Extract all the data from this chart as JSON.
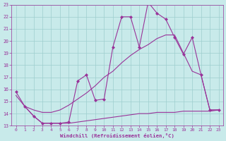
{
  "background_color": "#c8eaea",
  "grid_color": "#9ecece",
  "line_color": "#993399",
  "marker_color": "#993399",
  "xlabel": "Windchill (Refroidissement éolien,°C)",
  "xlabel_color": "#993399",
  "tick_color": "#993399",
  "xlim": [
    -0.5,
    23.5
  ],
  "ylim": [
    13,
    23
  ],
  "yticks": [
    13,
    14,
    15,
    16,
    17,
    18,
    19,
    20,
    21,
    22,
    23
  ],
  "xticks": [
    0,
    1,
    2,
    3,
    4,
    5,
    6,
    7,
    8,
    9,
    10,
    11,
    12,
    13,
    14,
    15,
    16,
    17,
    18,
    19,
    20,
    21,
    22,
    23
  ],
  "line1_x": [
    0,
    1,
    2,
    3,
    4,
    5,
    6,
    7,
    8,
    9,
    10,
    11,
    12,
    13,
    14,
    15,
    16,
    17,
    18,
    19,
    20,
    21,
    22,
    23
  ],
  "line1_y": [
    15.8,
    14.6,
    13.8,
    13.2,
    13.2,
    13.2,
    13.3,
    16.7,
    17.2,
    15.1,
    15.2,
    19.5,
    22.0,
    22.0,
    19.5,
    23.2,
    22.3,
    21.8,
    20.3,
    18.9,
    20.3,
    17.2,
    14.3,
    14.3
  ],
  "line2_x": [
    0,
    1,
    2,
    3,
    4,
    5,
    6,
    7,
    8,
    9,
    10,
    11,
    12,
    13,
    14,
    15,
    16,
    17,
    18,
    19,
    20,
    21,
    22,
    23
  ],
  "line2_y": [
    15.5,
    14.6,
    14.3,
    14.1,
    14.1,
    14.3,
    14.7,
    15.2,
    15.7,
    16.3,
    17.0,
    17.5,
    18.2,
    18.8,
    19.3,
    19.7,
    20.2,
    20.5,
    20.5,
    19.0,
    17.5,
    17.2,
    14.3,
    14.3
  ],
  "line3_x": [
    1,
    2,
    3,
    4,
    5,
    6,
    7,
    8,
    9,
    10,
    11,
    12,
    13,
    14,
    15,
    16,
    17,
    18,
    19,
    20,
    21,
    22,
    23
  ],
  "line3_y": [
    14.6,
    13.8,
    13.2,
    13.2,
    13.2,
    13.2,
    13.3,
    13.4,
    13.5,
    13.6,
    13.7,
    13.8,
    13.9,
    14.0,
    14.0,
    14.1,
    14.1,
    14.1,
    14.2,
    14.2,
    14.2,
    14.2,
    14.3
  ]
}
